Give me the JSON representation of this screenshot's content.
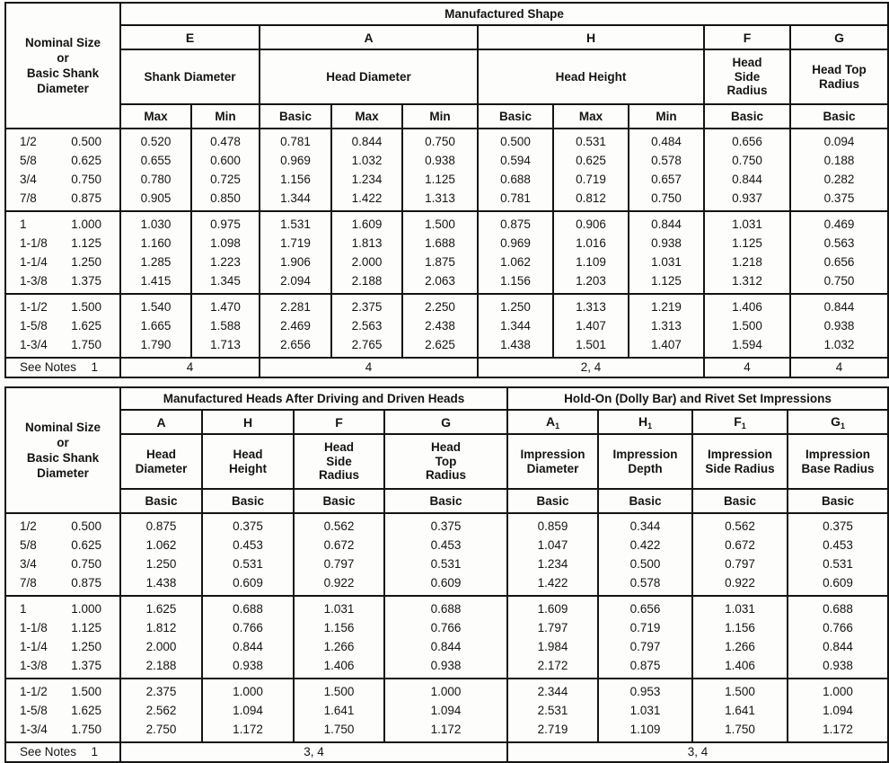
{
  "top_table": {
    "corner": "Nominal Size\nor\nBasic Shank\nDiameter",
    "title": "Manufactured Shape",
    "letters": [
      "E",
      "A",
      "H",
      "F",
      "G"
    ],
    "descriptions": [
      "Shank Diameter",
      "Head Diameter",
      "Head Height",
      "Head\nSide\nRadius",
      "Head Top\nRadius"
    ],
    "subheads": [
      "Max",
      "Min",
      "Basic",
      "Max",
      "Min",
      "Basic",
      "Max",
      "Min",
      "Basic",
      "Basic"
    ],
    "groups": [
      [
        [
          "1/2",
          "0.500",
          "0.520",
          "0.478",
          "0.781",
          "0.844",
          "0.750",
          "0.500",
          "0.531",
          "0.484",
          "0.656",
          "0.094"
        ],
        [
          "5/8",
          "0.625",
          "0.655",
          "0.600",
          "0.969",
          "1.032",
          "0.938",
          "0.594",
          "0.625",
          "0.578",
          "0.750",
          "0.188"
        ],
        [
          "3/4",
          "0.750",
          "0.780",
          "0.725",
          "1.156",
          "1.234",
          "1.125",
          "0.688",
          "0.719",
          "0.657",
          "0.844",
          "0.282"
        ],
        [
          "7/8",
          "0.875",
          "0.905",
          "0.850",
          "1.344",
          "1.422",
          "1.313",
          "0.781",
          "0.812",
          "0.750",
          "0.937",
          "0.375"
        ]
      ],
      [
        [
          "1",
          "1.000",
          "1.030",
          "0.975",
          "1.531",
          "1.609",
          "1.500",
          "0.875",
          "0.906",
          "0.844",
          "1.031",
          "0.469"
        ],
        [
          "1-1/8",
          "1.125",
          "1.160",
          "1.098",
          "1.719",
          "1.813",
          "1.688",
          "0.969",
          "1.016",
          "0.938",
          "1.125",
          "0.563"
        ],
        [
          "1-1/4",
          "1.250",
          "1.285",
          "1.223",
          "1.906",
          "2.000",
          "1.875",
          "1.062",
          "1.109",
          "1.031",
          "1.218",
          "0.656"
        ],
        [
          "1-3/8",
          "1.375",
          "1.415",
          "1.345",
          "2.094",
          "2.188",
          "2.063",
          "1.156",
          "1.203",
          "1.125",
          "1.312",
          "0.750"
        ]
      ],
      [
        [
          "1-1/2",
          "1.500",
          "1.540",
          "1.470",
          "2.281",
          "2.375",
          "2.250",
          "1.250",
          "1.313",
          "1.219",
          "1.406",
          "0.844"
        ],
        [
          "1-5/8",
          "1.625",
          "1.665",
          "1.588",
          "2.469",
          "2.563",
          "2.438",
          "1.344",
          "1.407",
          "1.313",
          "1.500",
          "0.938"
        ],
        [
          "1-3/4",
          "1.750",
          "1.790",
          "1.713",
          "2.656",
          "2.765",
          "2.625",
          "1.438",
          "1.501",
          "1.407",
          "1.594",
          "1.032"
        ]
      ]
    ],
    "notes": {
      "label": "See Notes",
      "ref": "1",
      "shank_diameter": "4",
      "head_diameter": "4",
      "head_height": "2, 4",
      "head_side_radius": "4",
      "head_top_radius": "4"
    }
  },
  "bottom_table": {
    "corner": "Nominal Size\nor\nBasic Shank\nDiameter",
    "mfg_title": "Manufactured Heads After Driving and Driven Heads",
    "imp_title": "Hold-On (Dolly Bar) and Rivet Set Impressions",
    "mfg_letters": [
      "A",
      "H",
      "F",
      "G"
    ],
    "mfg_descriptions": [
      "Head\nDiameter",
      "Head\nHeight",
      "Head\nSide\nRadius",
      "Head\nTop\nRadius"
    ],
    "imp_letters": [
      {
        "base": "A",
        "sub": "1"
      },
      {
        "base": "H",
        "sub": "1"
      },
      {
        "base": "F",
        "sub": "1"
      },
      {
        "base": "G",
        "sub": "1"
      }
    ],
    "imp_descriptions": [
      "Impression\nDiameter",
      "Impression\nDepth",
      "Impression\nSide Radius",
      "Impression\nBase Radius"
    ],
    "basic_row": [
      "Basic",
      "Basic",
      "Basic",
      "Basic",
      "Basic",
      "Basic",
      "Basic",
      "Basic"
    ],
    "groups": [
      [
        [
          "1/2",
          "0.500",
          "0.875",
          "0.375",
          "0.562",
          "0.375",
          "0.859",
          "0.344",
          "0.562",
          "0.375"
        ],
        [
          "5/8",
          "0.625",
          "1.062",
          "0.453",
          "0.672",
          "0.453",
          "1.047",
          "0.422",
          "0.672",
          "0.453"
        ],
        [
          "3/4",
          "0.750",
          "1.250",
          "0.531",
          "0.797",
          "0.531",
          "1.234",
          "0.500",
          "0.797",
          "0.531"
        ],
        [
          "7/8",
          "0.875",
          "1.438",
          "0.609",
          "0.922",
          "0.609",
          "1.422",
          "0.578",
          "0.922",
          "0.609"
        ]
      ],
      [
        [
          "1",
          "1.000",
          "1.625",
          "0.688",
          "1.031",
          "0.688",
          "1.609",
          "0.656",
          "1.031",
          "0.688"
        ],
        [
          "1-1/8",
          "1.125",
          "1.812",
          "0.766",
          "1.156",
          "0.766",
          "1.797",
          "0.719",
          "1.156",
          "0.766"
        ],
        [
          "1-1/4",
          "1.250",
          "2.000",
          "0.844",
          "1.266",
          "0.844",
          "1.984",
          "0.797",
          "1.266",
          "0.844"
        ],
        [
          "1-3/8",
          "1.375",
          "2.188",
          "0.938",
          "1.406",
          "0.938",
          "2.172",
          "0.875",
          "1.406",
          "0.938"
        ]
      ],
      [
        [
          "1-1/2",
          "1.500",
          "2.375",
          "1.000",
          "1.500",
          "1.000",
          "2.344",
          "0.953",
          "1.500",
          "1.000"
        ],
        [
          "1-5/8",
          "1.625",
          "2.562",
          "1.094",
          "1.641",
          "1.094",
          "2.531",
          "1.031",
          "1.641",
          "1.094"
        ],
        [
          "1-3/4",
          "1.750",
          "2.750",
          "1.172",
          "1.750",
          "1.172",
          "2.719",
          "1.109",
          "1.750",
          "1.172"
        ]
      ]
    ],
    "notes": {
      "label": "See Notes",
      "ref": "1",
      "mfg": "3, 4",
      "imp": "3, 4"
    }
  }
}
